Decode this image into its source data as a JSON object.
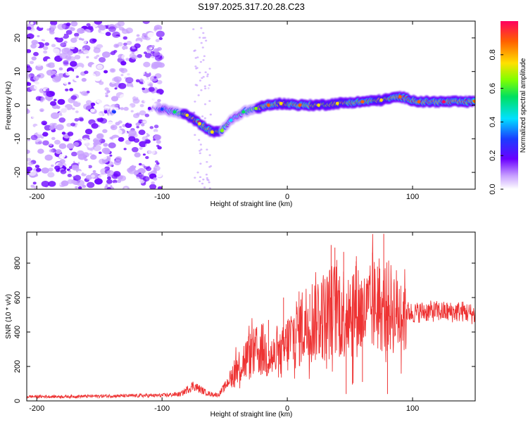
{
  "title": "S197.2025.317.20.28.C23",
  "chart_data": [
    {
      "type": "heatmap",
      "xlabel": "Height of straight line (km)",
      "ylabel": "Frequency (Hz)",
      "xlim": [
        -208,
        150
      ],
      "ylim": [
        -25,
        25
      ],
      "x_ticks": [
        -200,
        -100,
        0,
        100
      ],
      "y_ticks": [
        -20,
        -10,
        0,
        10,
        20
      ],
      "colorbar": {
        "label": "Normalized spectral amplitude",
        "range": [
          0,
          1
        ],
        "ticks": [
          0.0,
          0.2,
          0.4,
          0.6,
          0.8
        ],
        "tick_labels": [
          "0.0",
          "0.2",
          "0.4",
          "0.6",
          "0.8"
        ]
      },
      "ridge": [
        {
          "x": -145,
          "y": -2.0,
          "a": 0.25
        },
        {
          "x": -138,
          "y": -2.0,
          "a": 0.3
        },
        {
          "x": -110,
          "y": -1.0,
          "a": 0.2
        },
        {
          "x": -100,
          "y": -1.2,
          "a": 0.4
        },
        {
          "x": -90,
          "y": -2.0,
          "a": 0.6
        },
        {
          "x": -80,
          "y": -3.0,
          "a": 0.8
        },
        {
          "x": -70,
          "y": -5.5,
          "a": 0.85
        },
        {
          "x": -60,
          "y": -8.0,
          "a": 0.85
        },
        {
          "x": -52,
          "y": -7.5,
          "a": 0.7
        },
        {
          "x": -45,
          "y": -4.5,
          "a": 0.5
        },
        {
          "x": -35,
          "y": -2.0,
          "a": 0.6
        },
        {
          "x": -25,
          "y": -1.0,
          "a": 0.7
        },
        {
          "x": -15,
          "y": 0.0,
          "a": 0.95
        },
        {
          "x": -5,
          "y": 0.5,
          "a": 0.8
        },
        {
          "x": 10,
          "y": 0.0,
          "a": 0.9
        },
        {
          "x": 25,
          "y": 0.0,
          "a": 0.8
        },
        {
          "x": 40,
          "y": 0.5,
          "a": 0.8
        },
        {
          "x": 60,
          "y": 1.0,
          "a": 0.9
        },
        {
          "x": 75,
          "y": 1.5,
          "a": 0.8
        },
        {
          "x": 90,
          "y": 2.5,
          "a": 0.9
        },
        {
          "x": 105,
          "y": 1.0,
          "a": 0.95
        },
        {
          "x": 125,
          "y": 1.0,
          "a": 1.0
        },
        {
          "x": 150,
          "y": 1.0,
          "a": 0.9
        }
      ]
    },
    {
      "type": "line",
      "xlabel": "Height of straight line (km)",
      "ylabel": "SNR (10 * v/v)",
      "xlim": [
        -208,
        150
      ],
      "ylim": [
        0,
        980
      ],
      "x_ticks": [
        -200,
        -100,
        0,
        100
      ],
      "y_ticks": [
        0,
        200,
        400,
        600,
        800
      ],
      "color": "#ee3333",
      "series": [
        {
          "name": "SNR",
          "x": [
            -208,
            -180,
            -150,
            -120,
            -100,
            -85,
            -75,
            -68,
            -62,
            -55,
            -50,
            -45,
            -40,
            -35,
            -30,
            -25,
            -20,
            -15,
            -10,
            -5,
            0,
            5,
            10,
            15,
            20,
            25,
            30,
            35,
            40,
            45,
            50,
            55,
            60,
            65,
            70,
            75,
            80,
            85,
            90,
            95,
            100,
            110,
            120,
            130,
            140,
            150
          ],
          "y": [
            25,
            25,
            28,
            30,
            32,
            40,
            90,
            60,
            40,
            35,
            80,
            140,
            190,
            230,
            260,
            280,
            300,
            260,
            250,
            260,
            330,
            380,
            420,
            450,
            470,
            500,
            490,
            520,
            530,
            520,
            540,
            560,
            500,
            520,
            560,
            540,
            550,
            530,
            510,
            520,
            510,
            520,
            520,
            515,
            520,
            500
          ],
          "spikes": [
            {
              "x": 35,
              "y": 905
            },
            {
              "x": 38,
              "y": 890
            },
            {
              "x": 45,
              "y": 865
            },
            {
              "x": 47,
              "y": 40
            },
            {
              "x": 52,
              "y": 95
            },
            {
              "x": 55,
              "y": 810
            },
            {
              "x": 68,
              "y": 860
            },
            {
              "x": 72,
              "y": 780
            },
            {
              "x": 77,
              "y": 970
            },
            {
              "x": 80,
              "y": 40
            },
            {
              "x": -3,
              "y": 600
            },
            {
              "x": 18,
              "y": 620
            },
            {
              "x": -15,
              "y": 470
            },
            {
              "x": 60,
              "y": 110
            },
            {
              "x": 64,
              "y": 650
            }
          ]
        }
      ]
    }
  ]
}
